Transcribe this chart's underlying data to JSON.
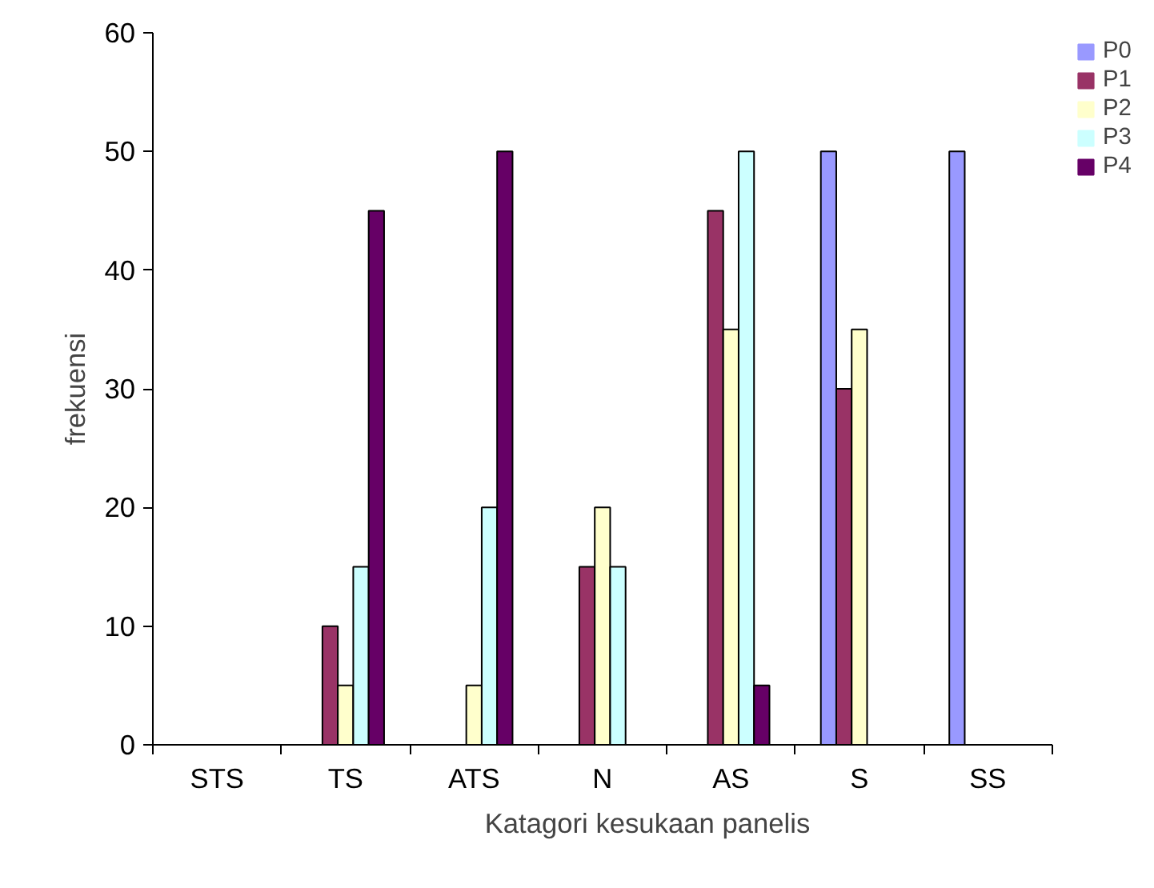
{
  "chart_data": {
    "type": "bar",
    "xlabel": "Katagori kesukaan panelis",
    "ylabel": "frekuensi",
    "categories": [
      "STS",
      "TS",
      "ATS",
      "N",
      "AS",
      "S",
      "SS"
    ],
    "series": [
      {
        "name": "P0",
        "color": "#9999ff",
        "values": [
          0,
          0,
          0,
          0,
          0,
          50,
          50
        ]
      },
      {
        "name": "P1",
        "color": "#993366",
        "values": [
          0,
          10,
          0,
          15,
          45,
          30,
          0
        ]
      },
      {
        "name": "P2",
        "color": "#ffffcc",
        "values": [
          0,
          5,
          5,
          20,
          35,
          35,
          0
        ]
      },
      {
        "name": "P3",
        "color": "#ccffff",
        "values": [
          0,
          15,
          20,
          15,
          50,
          0,
          0
        ]
      },
      {
        "name": "P4",
        "color": "#660066",
        "values": [
          0,
          45,
          50,
          0,
          5,
          0,
          0
        ]
      }
    ],
    "ylim": [
      0,
      60
    ],
    "yticks": [
      0,
      10,
      20,
      30,
      40,
      50,
      60
    ],
    "grid": false,
    "legend": "right"
  }
}
